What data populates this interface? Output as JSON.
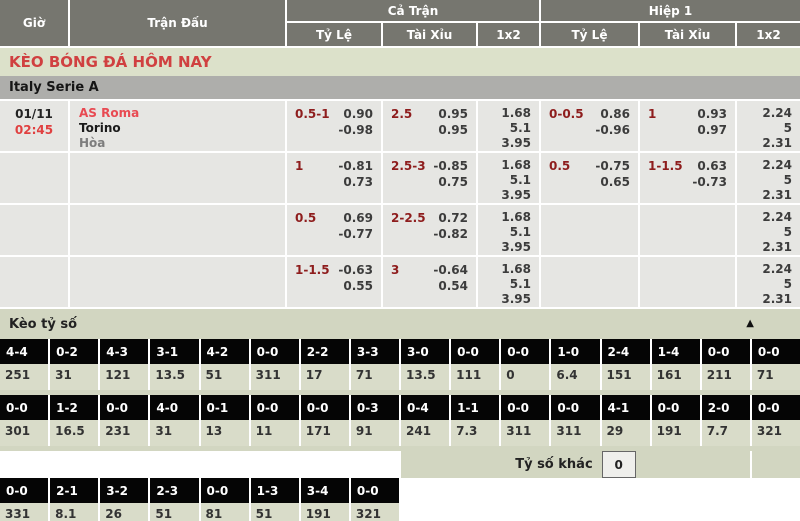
{
  "header": {
    "col_time": "Giờ",
    "col_match": "Trận Đấu",
    "group_full": "Cả Trận",
    "group_half": "Hiệp 1",
    "sub_handicap": "Tỷ Lệ",
    "sub_over_under": "Tài Xỉu",
    "sub_1x2": "1x2"
  },
  "page_title": "KÈO BÓNG ĐÁ HÔM NAY",
  "league": "Italy Serie A",
  "odds_rows": [
    {
      "date": "01/11",
      "time": "02:45",
      "home": "AS Roma",
      "away": "Torino",
      "draw": "Hòa",
      "ft_hdp": {
        "line": "0.5-1",
        "v1": "0.90",
        "v2": "-0.98"
      },
      "ft_ou": {
        "line": "2.5",
        "v1": "0.95",
        "v2": "0.95"
      },
      "ft_1x2": [
        "1.68",
        "5.1",
        "3.95"
      ],
      "h1_hdp": {
        "line": "0-0.5",
        "v1": "0.86",
        "v2": "-0.96"
      },
      "h1_ou": {
        "line": "1",
        "v1": "0.93",
        "v2": "0.97"
      },
      "h1_1x2": [
        "2.24",
        "5",
        "2.31"
      ]
    },
    {
      "ft_hdp": {
        "line": "1",
        "v1": "-0.81",
        "v2": "0.73"
      },
      "ft_ou": {
        "line": "2.5-3",
        "v1": "-0.85",
        "v2": "0.75"
      },
      "ft_1x2": [
        "1.68",
        "5.1",
        "3.95"
      ],
      "h1_hdp": {
        "line": "0.5",
        "v1": "-0.75",
        "v2": "0.65"
      },
      "h1_ou": {
        "line": "1-1.5",
        "v1": "0.63",
        "v2": "-0.73"
      },
      "h1_1x2": [
        "2.24",
        "5",
        "2.31"
      ]
    },
    {
      "ft_hdp": {
        "line": "0.5",
        "v1": "0.69",
        "v2": "-0.77"
      },
      "ft_ou": {
        "line": "2-2.5",
        "v1": "0.72",
        "v2": "-0.82"
      },
      "ft_1x2": [
        "1.68",
        "5.1",
        "3.95"
      ],
      "h1_hdp": null,
      "h1_ou": null,
      "h1_1x2": [
        "2.24",
        "5",
        "2.31"
      ]
    },
    {
      "ft_hdp": {
        "line": "1-1.5",
        "v1": "-0.63",
        "v2": "0.55"
      },
      "ft_ou": {
        "line": "3",
        "v1": "-0.64",
        "v2": "0.54"
      },
      "ft_1x2": [
        "1.68",
        "5.1",
        "3.95"
      ],
      "h1_hdp": null,
      "h1_ou": null,
      "h1_1x2": [
        "2.24",
        "5",
        "2.31"
      ]
    }
  ],
  "score_section": {
    "title": "Kèo tỷ số",
    "collapse_icon": "▲",
    "row1": [
      {
        "score": "4-4",
        "odds": "251"
      },
      {
        "score": "0-2",
        "odds": "31"
      },
      {
        "score": "4-3",
        "odds": "121"
      },
      {
        "score": "3-1",
        "odds": "13.5"
      },
      {
        "score": "4-2",
        "odds": "51"
      },
      {
        "score": "0-0",
        "odds": "311"
      },
      {
        "score": "2-2",
        "odds": "17"
      },
      {
        "score": "3-3",
        "odds": "71"
      },
      {
        "score": "3-0",
        "odds": "13.5"
      },
      {
        "score": "0-0",
        "odds": "111"
      },
      {
        "score": "0-0",
        "odds": "0"
      },
      {
        "score": "1-0",
        "odds": "6.4"
      },
      {
        "score": "2-4",
        "odds": "151"
      },
      {
        "score": "1-4",
        "odds": "161"
      },
      {
        "score": "0-0",
        "odds": "211"
      },
      {
        "score": "0-0",
        "odds": "71"
      }
    ],
    "row2": [
      {
        "score": "0-0",
        "odds": "301"
      },
      {
        "score": "1-2",
        "odds": "16.5"
      },
      {
        "score": "0-0",
        "odds": "231"
      },
      {
        "score": "4-0",
        "odds": "31"
      },
      {
        "score": "0-1",
        "odds": "13"
      },
      {
        "score": "0-0",
        "odds": "11"
      },
      {
        "score": "0-0",
        "odds": "171"
      },
      {
        "score": "0-3",
        "odds": "91"
      },
      {
        "score": "0-4",
        "odds": "241"
      },
      {
        "score": "1-1",
        "odds": "7.3"
      },
      {
        "score": "0-0",
        "odds": "311"
      },
      {
        "score": "0-0",
        "odds": "311"
      },
      {
        "score": "4-1",
        "odds": "29"
      },
      {
        "score": "0-0",
        "odds": "191"
      },
      {
        "score": "2-0",
        "odds": "7.7"
      },
      {
        "score": "0-0",
        "odds": "321"
      }
    ],
    "row3": [
      {
        "score": "0-0",
        "odds": "331"
      },
      {
        "score": "2-1",
        "odds": "8.1"
      },
      {
        "score": "3-2",
        "odds": "26"
      },
      {
        "score": "2-3",
        "odds": "51"
      },
      {
        "score": "0-0",
        "odds": "81"
      },
      {
        "score": "1-3",
        "odds": "51"
      },
      {
        "score": "3-4",
        "odds": "191"
      },
      {
        "score": "0-0",
        "odds": "321"
      }
    ],
    "other_label": "Tỷ số khác",
    "other_value": "0"
  },
  "colors": {
    "header_bg": "#76766f",
    "title_bar_bg": "#dce1ca",
    "title_text_red": "#d04040",
    "league_bar_bg": "#aeaeab",
    "row_bg": "#e6e6e3",
    "handicap_line_maroon": "#8e1d1d",
    "home_team_red": "#e84a52",
    "time_red": "#e04040",
    "draw_gray": "#7d7d7d",
    "section_bg": "#d2d6c1",
    "score_box_bg": "#050505"
  }
}
